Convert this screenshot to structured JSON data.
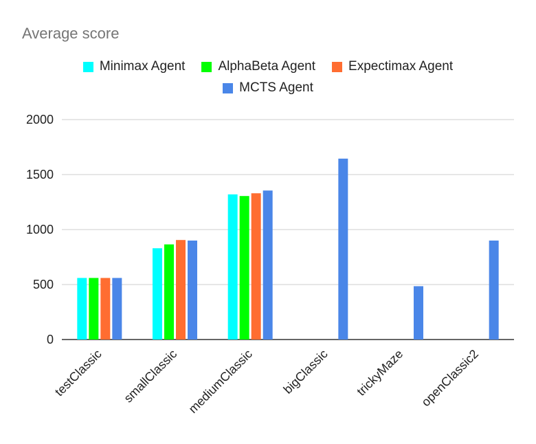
{
  "chart_data": {
    "type": "bar",
    "title": "Average score",
    "xlabel": "",
    "ylabel": "",
    "ylim": [
      0,
      2000
    ],
    "yticks": [
      0,
      500,
      1000,
      1500,
      2000
    ],
    "grid": true,
    "legend_position": "top",
    "categories": [
      "testClassic",
      "smallClassic",
      "mediumClassic",
      "bigClassic",
      "trickyMaze",
      "openClassic2"
    ],
    "series": [
      {
        "name": "Minimax Agent",
        "color": "#00ffff",
        "values": [
          560,
          830,
          1320,
          null,
          null,
          null
        ]
      },
      {
        "name": "AlphaBeta Agent",
        "color": "#00ff00",
        "values": [
          560,
          865,
          1305,
          null,
          null,
          null
        ]
      },
      {
        "name": "Expectimax Agent",
        "color": "#ff6d31",
        "values": [
          560,
          905,
          1330,
          null,
          null,
          null
        ]
      },
      {
        "name": "MCTS Agent",
        "color": "#4a86e8",
        "values": [
          560,
          900,
          1355,
          1645,
          485,
          900
        ]
      }
    ]
  }
}
